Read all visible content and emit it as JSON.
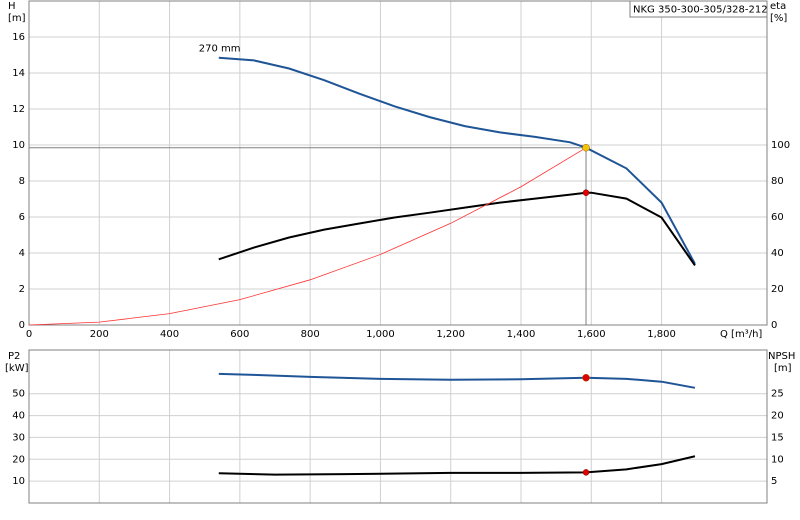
{
  "chart_data": [
    {
      "type": "line",
      "title": "NKG 350-300-305/328-212",
      "annotation": "270 mm",
      "ylabel": "H",
      "yunit": "[m]",
      "y2label": "eta",
      "y2unit": "[%]",
      "xlabel": "Q [m³/h]",
      "xlim": [
        0,
        2100
      ],
      "ylim": [
        0,
        18
      ],
      "y2lim": [
        0,
        180
      ],
      "grid": true,
      "xticks": [
        0,
        200,
        400,
        600,
        800,
        {
          "value": 1000,
          "label": "1,000"
        },
        {
          "value": 1200,
          "label": "1,200"
        },
        {
          "value": 1400,
          "label": "1,400"
        },
        {
          "value": 1600,
          "label": "1,600"
        },
        {
          "value": 1800,
          "label": "1,800"
        }
      ],
      "yticks": [
        0,
        2,
        4,
        6,
        8,
        10,
        12,
        14,
        16
      ],
      "y2ticks": [
        0,
        20,
        40,
        60,
        80,
        100
      ],
      "series": [
        {
          "color": "#1f5596",
          "width": 2,
          "x": [
            540,
            640,
            740,
            840,
            940,
            1040,
            1140,
            1240,
            1340,
            1440,
            1540,
            1585,
            1700,
            1800,
            1895
          ],
          "values": [
            14.85,
            14.7,
            14.25,
            13.6,
            12.85,
            12.15,
            11.55,
            11.05,
            10.7,
            10.45,
            10.15,
            9.85,
            8.7,
            6.8,
            3.4
          ]
        },
        {
          "color": "#000000",
          "width": 2,
          "axis": "y2",
          "x": [
            540,
            640,
            740,
            840,
            940,
            1040,
            1140,
            1240,
            1340,
            1440,
            1540,
            1585,
            1600,
            1700,
            1800,
            1895
          ],
          "values": [
            36.5,
            43,
            48.6,
            53,
            56.4,
            59.7,
            62.4,
            65.2,
            68,
            70.2,
            72.4,
            73.5,
            73.5,
            70.2,
            59.7,
            33.1
          ]
        },
        {
          "color": "#ff3030",
          "width": 0.8,
          "x": [
            0,
            200,
            400,
            600,
            800,
            1000,
            1200,
            1400,
            1585
          ],
          "values": [
            0,
            0.16,
            0.63,
            1.41,
            2.51,
            3.92,
            5.65,
            7.68,
            9.85
          ]
        }
      ],
      "duty_point": {
        "x": 1585,
        "y": 9.85,
        "y2": 73.5,
        "color": "#f5c400",
        "y2color": "#e00000"
      }
    },
    {
      "type": "line",
      "ylabel": "P2",
      "yunit": "[kW]",
      "y2label": "NPSH",
      "y2unit": "[m]",
      "xlim": [
        0,
        2100
      ],
      "ylim": [
        0,
        70
      ],
      "y2lim": [
        0,
        35
      ],
      "grid": true,
      "yticks": [
        10,
        20,
        30,
        40,
        50
      ],
      "y2ticks": [
        5,
        10,
        15,
        20,
        25
      ],
      "series": [
        {
          "color": "#1f5596",
          "width": 2,
          "x": [
            540,
            640,
            800,
            1000,
            1200,
            1400,
            1585,
            1700,
            1800,
            1895
          ],
          "values": [
            59.1,
            58.6,
            57.7,
            56.8,
            56.4,
            56.6,
            57.3,
            56.8,
            55.5,
            52.7
          ]
        },
        {
          "color": "#000000",
          "width": 2,
          "axis": "y2",
          "x": [
            540,
            700,
            900,
            1200,
            1400,
            1585,
            1700,
            1800,
            1895
          ],
          "values": [
            6.8,
            6.5,
            6.6,
            6.9,
            6.9,
            7.0,
            7.7,
            8.9,
            10.7
          ]
        }
      ],
      "duty_point": {
        "x": 1585,
        "y": 57.3,
        "y2": 7.0,
        "color": "#e00000",
        "y2color": "#e00000"
      }
    }
  ]
}
